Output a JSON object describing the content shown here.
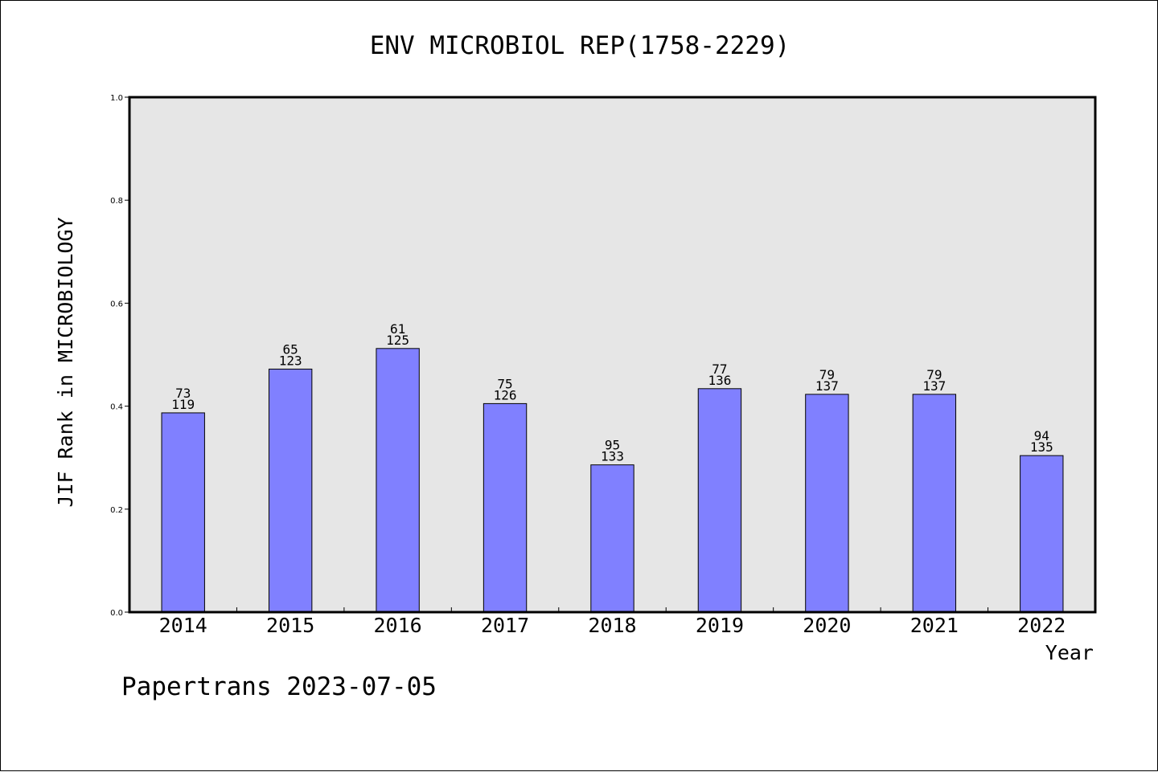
{
  "chart_data": {
    "type": "bar",
    "title": "ENV MICROBIOL REP(1758-2229)",
    "xlabel": "Year",
    "ylabel": "JIF Rank in MICROBIOLOGY",
    "ylim": [
      0,
      1.0
    ],
    "yticks": [
      "0.0",
      "0.2",
      "0.4",
      "0.6",
      "0.8",
      "1.0"
    ],
    "categories": [
      "2014",
      "2015",
      "2016",
      "2017",
      "2018",
      "2019",
      "2020",
      "2021",
      "2022"
    ],
    "values": [
      0.387,
      0.472,
      0.512,
      0.405,
      0.286,
      0.434,
      0.423,
      0.423,
      0.304
    ],
    "rank": [
      "73",
      "65",
      "61",
      "75",
      "95",
      "77",
      "79",
      "79",
      "94"
    ],
    "total": [
      "119",
      "123",
      "125",
      "126",
      "133",
      "136",
      "137",
      "137",
      "135"
    ],
    "bar_color": "#8080ff",
    "plot_background": "#e6e6e6",
    "grid": false,
    "legend": "none"
  },
  "footer": "Papertrans 2023-07-05"
}
